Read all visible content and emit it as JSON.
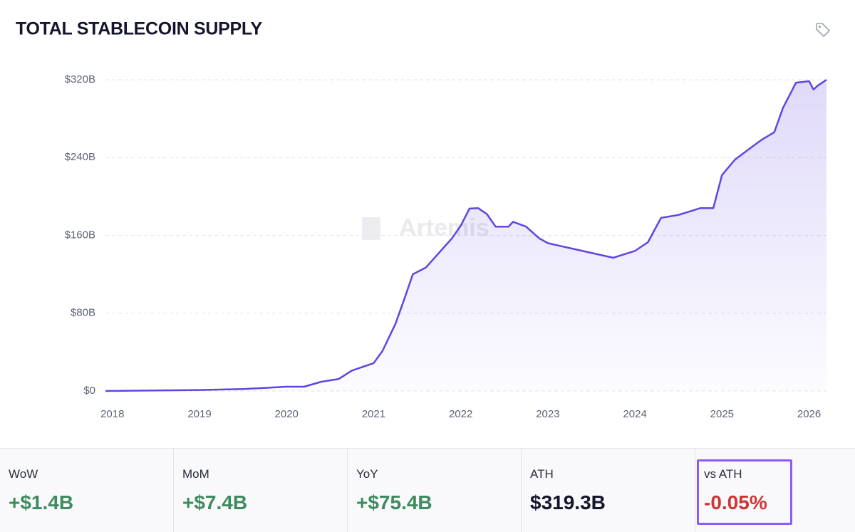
{
  "chart_data": {
    "type": "line",
    "title": "TOTAL STABLECOIN SUPPLY",
    "watermark": "Artemis",
    "color": "#6244e0",
    "x": [
      2017.92,
      2019,
      2019.5,
      2020,
      2020.2,
      2020.4,
      2020.6,
      2020.75,
      2021,
      2021.1,
      2021.25,
      2021.35,
      2021.45,
      2021.6,
      2021.75,
      2021.9,
      2022,
      2022.1,
      2022.2,
      2022.3,
      2022.4,
      2022.55,
      2022.6,
      2022.75,
      2022.9,
      2023,
      2023.1,
      2023.3,
      2023.5,
      2023.75,
      2024,
      2024.15,
      2024.3,
      2024.5,
      2024.75,
      2024.9,
      2025,
      2025.15,
      2025.3,
      2025.45,
      2025.6,
      2025.7,
      2025.85,
      2026,
      2026.05,
      2026.1,
      2026.2
    ],
    "values": [
      0,
      1,
      2,
      4.4,
      4.4,
      9.5,
      12.4,
      21,
      28.6,
      41,
      69,
      94,
      120,
      127,
      142,
      157,
      170,
      187.5,
      188,
      182,
      169,
      169,
      174,
      169,
      157,
      152,
      150,
      146,
      142,
      137,
      144,
      153,
      178,
      181,
      188,
      188,
      222,
      238,
      248,
      258,
      266,
      291,
      317,
      318.5,
      310,
      314,
      320
    ],
    "xlim": [
      2017.92,
      2026.2
    ],
    "xticks": [
      2018,
      2019,
      2020,
      2021,
      2022,
      2023,
      2024,
      2025,
      2026
    ],
    "ylim": [
      0,
      320
    ],
    "yticks": [
      {
        "value": 0,
        "label": "$0"
      },
      {
        "value": 80,
        "label": "$80B"
      },
      {
        "value": 160,
        "label": "$160B"
      },
      {
        "value": 240,
        "label": "$240B"
      },
      {
        "value": 320,
        "label": "$320B"
      }
    ],
    "grid": true
  },
  "stats": [
    {
      "label": "WoW",
      "value": "+$1.4B",
      "color": "#3d8b5e"
    },
    {
      "label": "MoM",
      "value": "+$7.4B",
      "color": "#3d8b5e"
    },
    {
      "label": "YoY",
      "value": "+$75.4B",
      "color": "#3d8b5e"
    },
    {
      "label": "ATH",
      "value": "$319.3B",
      "color": "#14162b"
    },
    {
      "label": "vs ATH",
      "value": "-0.05%",
      "color": "#cf3535"
    }
  ]
}
